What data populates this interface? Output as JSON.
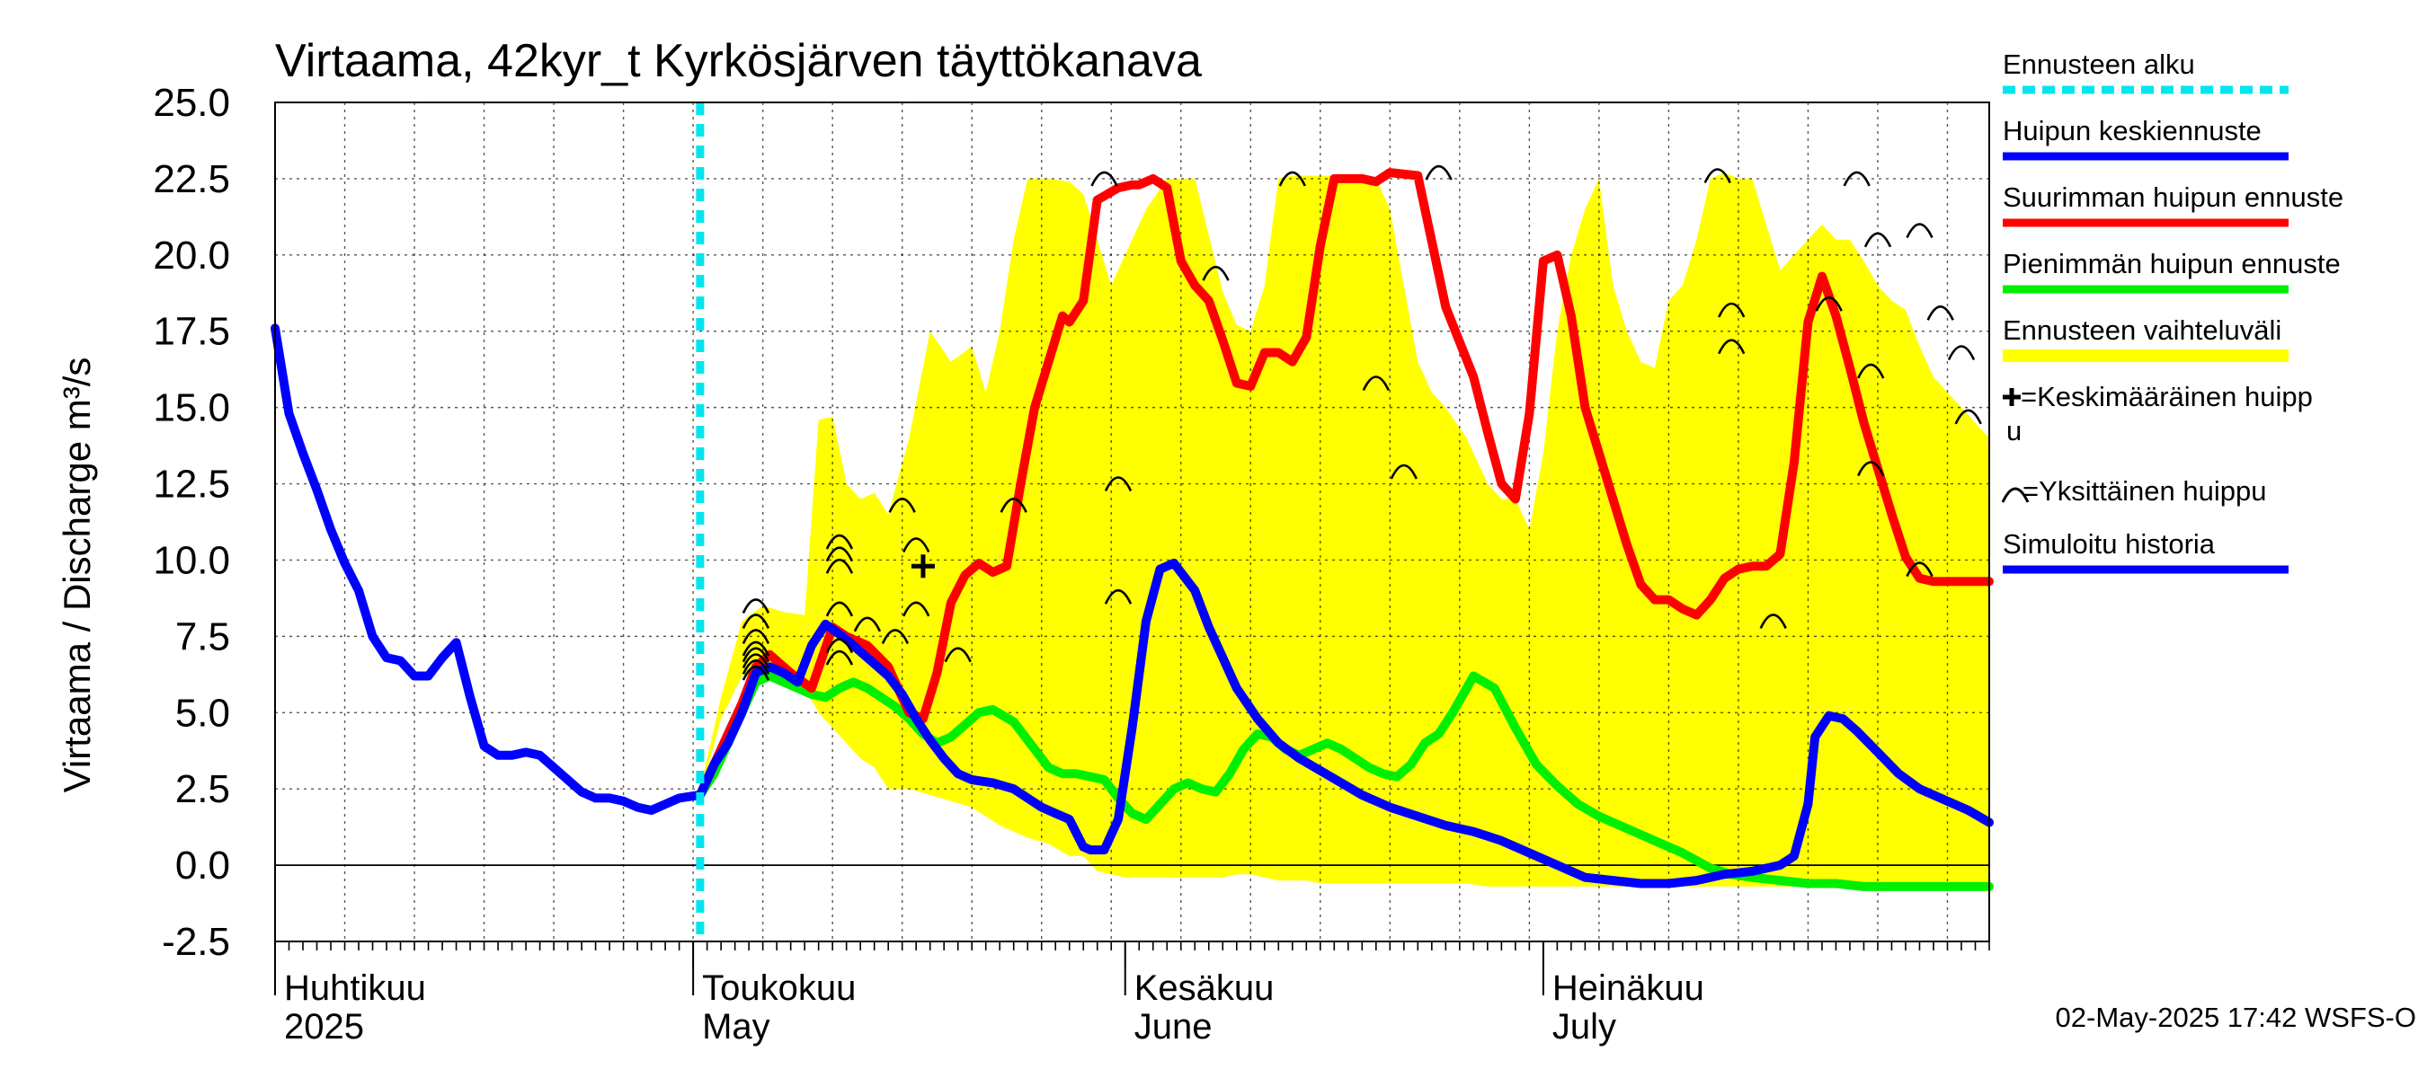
{
  "chart_data": {
    "type": "line",
    "title": "Virtaama, 42kyr_t Kyrkösjärven täyttökanava",
    "ylabel": "Virtaama / Discharge    m³/s",
    "ylim": [
      -2.5,
      25.0
    ],
    "yticks": [
      "25.0",
      "22.5",
      "20.0",
      "17.5",
      "15.0",
      "12.5",
      "10.0",
      "7.5",
      "5.0",
      "2.5",
      "0.0",
      "-2.5"
    ],
    "x_unit": "days since 2025-04-01",
    "xlim": [
      0,
      123
    ],
    "forecast_start": 30.5,
    "months": [
      {
        "label": "Huhtikuu",
        "sublabel": "2025",
        "day": 0
      },
      {
        "label": "Toukokuu",
        "sublabel": "May",
        "day": 30
      },
      {
        "label": "Kesäkuu",
        "sublabel": "June",
        "day": 61
      },
      {
        "label": "Heinäkuu",
        "sublabel": "July",
        "day": 91
      }
    ],
    "legend": [
      {
        "label": "Ennusteen alku",
        "color": "#00e5ee",
        "style": "dashed"
      },
      {
        "label": "Huipun keskiennuste",
        "color": "#0000ff",
        "style": "solid"
      },
      {
        "label": "Suurimman huipun ennuste",
        "color": "#ff0000",
        "style": "solid"
      },
      {
        "label": "Pienimmän huipun ennuste",
        "color": "#00ee00",
        "style": "solid"
      },
      {
        "label": "Ennusteen vaihteluväli",
        "color": "#ffff00",
        "style": "band"
      },
      {
        "label": "=Keskimääräinen huipp",
        "label2": "u",
        "symbol": "cross"
      },
      {
        "label": "=Yksittäinen huippu",
        "symbol": "arc"
      },
      {
        "label": "Simuloitu historia",
        "color": "#0000ff",
        "style": "solid"
      }
    ],
    "series": [
      {
        "name": "Ennusteen vaihteluväli",
        "color": "#ffff00",
        "type": "band",
        "x": [
          30.5,
          32,
          33.5,
          35,
          36.5,
          38,
          39,
          40,
          41,
          42,
          43,
          44,
          45.5,
          47,
          48.5,
          50,
          51,
          52,
          53,
          54,
          55.5,
          57,
          58,
          59,
          60,
          61,
          62.5,
          64,
          66,
          68,
          69,
          70,
          71,
          72,
          73,
          74,
          75,
          76,
          77.5,
          79,
          80,
          81,
          82,
          83,
          84,
          85.5,
          87,
          88,
          89,
          90,
          91,
          92,
          93,
          94,
          95,
          96,
          97,
          98,
          99,
          100,
          101,
          102,
          103,
          104,
          105,
          106,
          107,
          108,
          109,
          110,
          111,
          112,
          113,
          114,
          115,
          116,
          117,
          118,
          119,
          120,
          121,
          122,
          123
        ],
        "upper": [
          2.5,
          5.5,
          8.0,
          8.5,
          8.3,
          8.2,
          14.6,
          14.7,
          12.5,
          12.0,
          12.2,
          11.5,
          14.0,
          17.5,
          16.5,
          17.0,
          15.5,
          17.5,
          20.5,
          22.5,
          22.5,
          22.4,
          22.0,
          20.5,
          19.0,
          20.0,
          21.5,
          22.5,
          22.5,
          18.8,
          17.7,
          17.5,
          19.0,
          22.5,
          22.6,
          22.6,
          22.6,
          22.6,
          22.5,
          22.5,
          21.5,
          19.0,
          16.5,
          15.5,
          15.0,
          14.0,
          12.5,
          12.0,
          12.0,
          11.0,
          13.5,
          17.5,
          20.0,
          21.5,
          22.5,
          19.0,
          17.5,
          16.5,
          16.3,
          18.5,
          19.0,
          20.5,
          22.5,
          22.7,
          22.5,
          22.5,
          21.0,
          19.5,
          20.0,
          20.5,
          21.0,
          20.5,
          20.5,
          19.8,
          19.0,
          18.5,
          18.2,
          17.0,
          16.0,
          15.5,
          15.0,
          14.5,
          14.0
        ],
        "lower": [
          2.3,
          4.8,
          6.2,
          6.5,
          6.0,
          5.8,
          5.0,
          4.5,
          4.0,
          3.5,
          3.2,
          2.5,
          2.5,
          2.3,
          2.1,
          1.9,
          1.6,
          1.3,
          1.1,
          0.9,
          0.7,
          0.3,
          0.3,
          -0.2,
          -0.3,
          -0.4,
          -0.4,
          -0.4,
          -0.4,
          -0.4,
          -0.3,
          -0.3,
          -0.4,
          -0.5,
          -0.5,
          -0.5,
          -0.6,
          -0.6,
          -0.6,
          -0.6,
          -0.6,
          -0.6,
          -0.6,
          -0.6,
          -0.6,
          -0.6,
          -0.7,
          -0.7,
          -0.7,
          -0.7,
          -0.7,
          -0.7,
          -0.7,
          -0.7,
          -0.7,
          -0.7,
          -0.7,
          -0.7,
          -0.7,
          -0.7,
          -0.7,
          -0.7,
          -0.7,
          -0.7,
          -0.7,
          -0.7,
          -0.7,
          -0.7,
          -0.7,
          -0.7,
          -0.7,
          -0.7,
          -0.7,
          -0.7,
          -0.7,
          -0.7,
          -0.7,
          -0.7,
          -0.7,
          -0.7,
          -0.7,
          -0.7,
          -0.7
        ]
      },
      {
        "name": "Simuloitu historia",
        "color": "#0000ff",
        "x": [
          0,
          1,
          2,
          3,
          4,
          5,
          6,
          7,
          8,
          9,
          10,
          11,
          12,
          13,
          14,
          15,
          16,
          17,
          18,
          19,
          20,
          21,
          22,
          23,
          24,
          25,
          26,
          27,
          28,
          29,
          30.5
        ],
        "y": [
          17.6,
          14.8,
          13.5,
          12.3,
          11.0,
          9.9,
          9.0,
          7.5,
          6.8,
          6.7,
          6.2,
          6.2,
          6.8,
          7.3,
          5.5,
          3.9,
          3.6,
          3.6,
          3.7,
          3.6,
          3.2,
          2.8,
          2.4,
          2.2,
          2.2,
          2.1,
          1.9,
          1.8,
          2.0,
          2.2,
          2.3
        ]
      },
      {
        "name": "Huipun keskiennuste",
        "color": "#0000ff",
        "x": [
          30.5,
          31.5,
          32.5,
          33.5,
          34.5,
          35.5,
          36.5,
          37.5,
          38.5,
          39.5,
          41,
          42.5,
          44,
          45,
          46,
          47,
          48,
          49,
          50,
          51.5,
          53,
          54,
          55,
          56,
          57,
          58,
          58.5,
          59.5,
          60.5,
          61.5,
          62.5,
          63.5,
          64.5,
          66,
          67,
          68,
          69,
          70.5,
          72,
          73.5,
          75,
          76.5,
          78,
          80,
          82,
          84,
          86,
          88,
          90,
          92,
          94,
          96,
          98,
          100,
          102,
          104,
          106,
          108,
          109,
          110,
          110.5,
          111.5,
          112.5,
          113.5,
          115,
          116.5,
          118,
          120,
          121.5,
          123
        ],
        "y": [
          2.3,
          3.3,
          4.0,
          5.0,
          6.3,
          6.5,
          6.3,
          6.0,
          7.2,
          7.9,
          7.4,
          6.8,
          6.2,
          5.6,
          4.8,
          4.1,
          3.5,
          3.0,
          2.8,
          2.7,
          2.5,
          2.2,
          1.9,
          1.7,
          1.5,
          0.6,
          0.5,
          0.5,
          1.5,
          4.5,
          8.0,
          9.7,
          9.9,
          9.0,
          7.8,
          6.8,
          5.8,
          4.8,
          4.0,
          3.5,
          3.1,
          2.7,
          2.3,
          1.9,
          1.6,
          1.3,
          1.1,
          0.8,
          0.4,
          0.0,
          -0.4,
          -0.5,
          -0.6,
          -0.6,
          -0.5,
          -0.3,
          -0.2,
          0.0,
          0.3,
          2.0,
          4.2,
          4.9,
          4.8,
          4.4,
          3.7,
          3.0,
          2.5,
          2.1,
          1.8,
          1.4
        ]
      },
      {
        "name": "Suurimman huipun ennuste",
        "color": "#ff0000",
        "x": [
          30.5,
          31.5,
          32.5,
          33.5,
          34.5,
          35.5,
          37,
          38.5,
          40,
          41,
          42.5,
          44,
          45.5,
          46.5,
          47.5,
          48.5,
          49.5,
          50.5,
          51.5,
          52.5,
          53.5,
          54.5,
          55.5,
          56.5,
          57,
          58,
          59,
          60.5,
          61.5,
          62,
          63,
          64,
          65,
          66,
          67,
          68,
          69,
          70,
          71,
          72,
          73,
          74,
          75,
          76,
          77,
          78,
          79,
          80,
          82,
          84,
          86,
          87,
          88,
          89,
          90,
          91,
          92,
          93,
          94,
          95,
          96,
          97,
          98,
          99,
          100,
          101,
          102,
          103,
          104,
          105,
          106,
          107,
          108,
          109,
          110,
          111,
          112,
          113,
          114,
          115,
          116,
          117,
          118,
          119,
          120,
          121,
          122,
          123
        ],
        "y": [
          2.3,
          3.3,
          4.3,
          5.3,
          6.5,
          6.9,
          6.3,
          5.8,
          7.8,
          7.5,
          7.2,
          6.5,
          5.0,
          4.8,
          6.3,
          8.6,
          9.5,
          9.9,
          9.6,
          9.8,
          12.5,
          15.0,
          16.5,
          18.0,
          17.8,
          18.5,
          21.8,
          22.2,
          22.3,
          22.3,
          22.5,
          22.2,
          19.8,
          19.0,
          18.5,
          17.2,
          15.8,
          15.7,
          16.8,
          16.8,
          16.5,
          17.3,
          20.3,
          22.5,
          22.5,
          22.5,
          22.4,
          22.7,
          22.6,
          18.3,
          16.0,
          14.2,
          12.5,
          12.0,
          14.8,
          19.8,
          20.0,
          18.0,
          15.0,
          13.5,
          12.0,
          10.5,
          9.2,
          8.7,
          8.7,
          8.4,
          8.2,
          8.7,
          9.4,
          9.7,
          9.8,
          9.8,
          10.2,
          13.2,
          17.8,
          19.3,
          18.0,
          16.3,
          14.5,
          13.0,
          11.5,
          10.1,
          9.4,
          9.3,
          9.3,
          9.3,
          9.3,
          9.3
        ]
      },
      {
        "name": "Pienimmän huipun ennuste",
        "color": "#00ee00",
        "x": [
          30.5,
          31.5,
          32.5,
          33.5,
          34.5,
          35.5,
          36.5,
          37.5,
          38.5,
          39.5,
          40.5,
          41.5,
          42.5,
          43.5,
          44.5,
          45.5,
          46.5,
          47.5,
          48.5,
          49.5,
          50.5,
          51.5,
          53,
          54.5,
          55.5,
          56.5,
          57.5,
          58.5,
          59.5,
          60.5,
          61.5,
          62.5,
          63.5,
          64.5,
          65.5,
          66.5,
          67.5,
          68.5,
          69.5,
          70.5,
          71.5,
          72.5,
          73.5,
          74.5,
          75.5,
          76.5,
          77.5,
          78.5,
          79.5,
          80.5,
          81.5,
          82.5,
          83.5,
          84.5,
          86,
          87.5,
          89,
          90.5,
          92,
          93.5,
          95,
          97,
          99,
          101,
          103,
          104.5,
          106,
          108,
          110,
          112,
          114,
          116,
          118,
          120,
          123
        ],
        "y": [
          2.3,
          3.0,
          4.0,
          5.0,
          6.0,
          6.2,
          6.0,
          5.8,
          5.6,
          5.5,
          5.8,
          6.0,
          5.8,
          5.5,
          5.2,
          4.8,
          4.3,
          4.0,
          4.2,
          4.6,
          5.0,
          5.1,
          4.7,
          3.8,
          3.2,
          3.0,
          3.0,
          2.9,
          2.8,
          2.2,
          1.7,
          1.5,
          2.0,
          2.5,
          2.7,
          2.5,
          2.4,
          3.0,
          3.8,
          4.3,
          4.2,
          3.8,
          3.6,
          3.8,
          4.0,
          3.8,
          3.5,
          3.2,
          3.0,
          2.9,
          3.3,
          4.0,
          4.3,
          5.0,
          6.2,
          5.8,
          4.5,
          3.3,
          2.6,
          2.0,
          1.6,
          1.2,
          0.8,
          0.4,
          -0.1,
          -0.3,
          -0.4,
          -0.5,
          -0.6,
          -0.6,
          -0.7,
          -0.7,
          -0.7,
          -0.7,
          -0.7
        ]
      }
    ],
    "peaks": [
      {
        "x": 34.5,
        "y": 8.5
      },
      {
        "x": 34.5,
        "y": 8.0
      },
      {
        "x": 34.5,
        "y": 7.5
      },
      {
        "x": 34.5,
        "y": 7.1
      },
      {
        "x": 34.5,
        "y": 6.9
      },
      {
        "x": 34.5,
        "y": 6.7
      },
      {
        "x": 34.5,
        "y": 6.5
      },
      {
        "x": 34.5,
        "y": 6.3
      },
      {
        "x": 40.5,
        "y": 10.6
      },
      {
        "x": 40.5,
        "y": 10.2
      },
      {
        "x": 40.5,
        "y": 9.8
      },
      {
        "x": 40.5,
        "y": 8.4
      },
      {
        "x": 40.5,
        "y": 7.2
      },
      {
        "x": 40.5,
        "y": 6.8
      },
      {
        "x": 42.5,
        "y": 7.9
      },
      {
        "x": 44.5,
        "y": 7.5
      },
      {
        "x": 45,
        "y": 11.8
      },
      {
        "x": 46,
        "y": 10.5
      },
      {
        "x": 46,
        "y": 8.4
      },
      {
        "x": 49,
        "y": 6.9
      },
      {
        "x": 53,
        "y": 11.8
      },
      {
        "x": 59.5,
        "y": 22.5
      },
      {
        "x": 60.5,
        "y": 12.5
      },
      {
        "x": 60.5,
        "y": 8.8
      },
      {
        "x": 67.5,
        "y": 19.4
      },
      {
        "x": 73,
        "y": 22.5
      },
      {
        "x": 79,
        "y": 15.8
      },
      {
        "x": 81,
        "y": 12.9
      },
      {
        "x": 83.5,
        "y": 22.7
      },
      {
        "x": 103.5,
        "y": 22.6
      },
      {
        "x": 104.5,
        "y": 18.2
      },
      {
        "x": 104.5,
        "y": 17.0
      },
      {
        "x": 107.5,
        "y": 8.0
      },
      {
        "x": 111.5,
        "y": 18.4
      },
      {
        "x": 113.5,
        "y": 22.5
      },
      {
        "x": 114.5,
        "y": 13.0
      },
      {
        "x": 114.5,
        "y": 16.2
      },
      {
        "x": 115,
        "y": 20.5
      },
      {
        "x": 118,
        "y": 20.8
      },
      {
        "x": 118,
        "y": 9.7
      },
      {
        "x": 119.5,
        "y": 18.1
      },
      {
        "x": 121,
        "y": 16.8
      },
      {
        "x": 121.5,
        "y": 14.7
      }
    ],
    "mean_peak": {
      "x": 46.5,
      "y": 9.8
    }
  },
  "footer": "02-May-2025 17:42 WSFS-O"
}
